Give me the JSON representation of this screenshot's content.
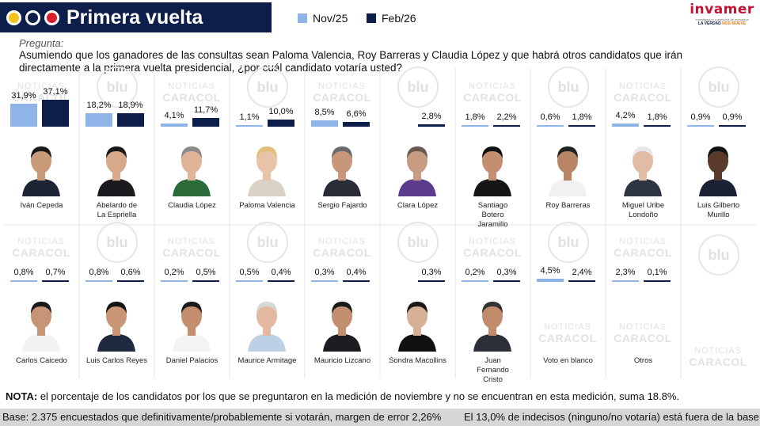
{
  "header": {
    "title": "Primera vuelta",
    "dot_colors": [
      "#f3c21b",
      "#0e1e4a",
      "#d81e2a"
    ]
  },
  "legend": {
    "nov_label": "Nov/25",
    "feb_label": "Feb/26",
    "nov_color": "#8eb4e8",
    "feb_color": "#0e1e4a"
  },
  "logo": {
    "name": "invamer",
    "subtitle": "Investigación y asesoría de mercados",
    "tagline_a": "LA VERDAD ",
    "tagline_b": "NOS MUEVE"
  },
  "question": {
    "label": "Pregunta:",
    "text": "Asumiendo que los ganadores de las consultas sean Paloma Valencia, Roy Barreras y Claudia López y que habrá otros candidatos que irán directamente a la primera vuelta presidencial, ¿por cuál candidato votaría usted?"
  },
  "chart_data": {
    "type": "bar",
    "series": [
      {
        "name": "Nov/25",
        "color": "#8eb4e8"
      },
      {
        "name": "Feb/26",
        "color": "#0e1e4a"
      }
    ],
    "candidates": [
      {
        "name": "Iván Cepeda",
        "nov": 31.9,
        "feb": 37.1,
        "nov_label": "31,9%",
        "feb_label": "37,1%"
      },
      {
        "name": "Abelardo de La Espriella",
        "nov": 18.2,
        "feb": 18.9,
        "nov_label": "18,2%",
        "feb_label": "18,9%"
      },
      {
        "name": "Claudia López",
        "nov": 4.1,
        "feb": 11.7,
        "nov_label": "4,1%",
        "feb_label": "11,7%"
      },
      {
        "name": "Paloma Valencia",
        "nov": 1.1,
        "feb": 10.0,
        "nov_label": "1,1%",
        "feb_label": "10,0%"
      },
      {
        "name": "Sergio Fajardo",
        "nov": 8.5,
        "feb": 6.6,
        "nov_label": "8,5%",
        "feb_label": "6,6%"
      },
      {
        "name": "Clara López",
        "nov": null,
        "feb": 2.8,
        "nov_label": "",
        "feb_label": "2,8%"
      },
      {
        "name": "Santiago Botero Jaramillo",
        "nov": 1.8,
        "feb": 2.2,
        "nov_label": "1,8%",
        "feb_label": "2,2%"
      },
      {
        "name": "Roy Barreras",
        "nov": 0.6,
        "feb": 1.8,
        "nov_label": "0,6%",
        "feb_label": "1,8%"
      },
      {
        "name": "Miguel Uribe Londoño",
        "nov": 4.2,
        "feb": 1.8,
        "nov_label": "4,2%",
        "feb_label": "1,8%"
      },
      {
        "name": "Luis Gilberto Murillo",
        "nov": 0.9,
        "feb": 0.9,
        "nov_label": "0,9%",
        "feb_label": "0,9%"
      },
      {
        "name": "Carlos Caicedo",
        "nov": 0.8,
        "feb": 0.7,
        "nov_label": "0,8%",
        "feb_label": "0,7%"
      },
      {
        "name": "Luis Carlos Reyes",
        "nov": 0.8,
        "feb": 0.6,
        "nov_label": "0,8%",
        "feb_label": "0,6%"
      },
      {
        "name": "Daniel Palacios",
        "nov": 0.2,
        "feb": 0.5,
        "nov_label": "0,2%",
        "feb_label": "0,5%"
      },
      {
        "name": "Maurice Armitage",
        "nov": 0.5,
        "feb": 0.4,
        "nov_label": "0,5%",
        "feb_label": "0,4%"
      },
      {
        "name": "Mauricio Lizcano",
        "nov": 0.3,
        "feb": 0.4,
        "nov_label": "0,3%",
        "feb_label": "0,4%"
      },
      {
        "name": "Sondra Macollins",
        "nov": null,
        "feb": 0.3,
        "nov_label": "",
        "feb_label": "0,3%"
      },
      {
        "name": "Juan Fernando Cristo",
        "nov": 0.2,
        "feb": 0.3,
        "nov_label": "0,2%",
        "feb_label": "0,3%"
      },
      {
        "name": "Voto en blanco",
        "nov": 4.5,
        "feb": 2.4,
        "nov_label": "4,5%",
        "feb_label": "2,4%"
      },
      {
        "name": "Otros",
        "nov": 2.3,
        "feb": 0.1,
        "nov_label": "2,3%",
        "feb_label": "0,1%"
      }
    ]
  },
  "watermarks": {
    "caracol_top": "NOTICIAS",
    "caracol_bottom": "CARACOL",
    "blu": "blu"
  },
  "note": {
    "label": "NOTA:",
    "text": " el porcentaje de los candidatos por los que se preguntaron en la medición de noviembre y no se encuentran en esta medición, suma 18.8%."
  },
  "footer": {
    "base": "Base: 2.375 encuestados que definitivamente/probablemente si votarán, margen de error 2,26%",
    "indecisos": "El 13,0% de indecisos (ninguno/no votaría) está fuera de la base."
  }
}
